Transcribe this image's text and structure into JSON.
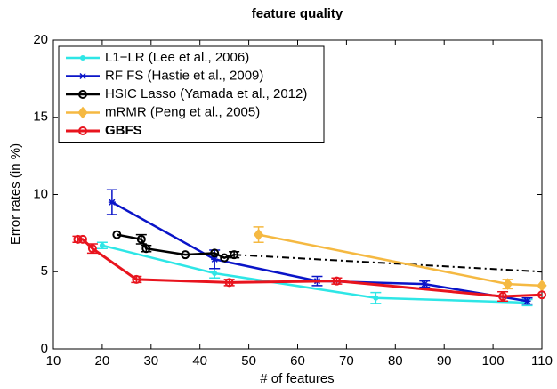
{
  "chart_data": {
    "type": "line",
    "title": "feature quality",
    "x_label": "# of features",
    "y_label": "Error rates (in %)",
    "xlim": [
      10,
      110
    ],
    "ylim": [
      0,
      20
    ],
    "xticks": [
      10,
      20,
      30,
      40,
      50,
      60,
      70,
      80,
      90,
      100,
      110
    ],
    "yticks": [
      0,
      5,
      10,
      15,
      20
    ],
    "legend": "upper-left",
    "series": [
      {
        "name": "L1−LR (Lee et al., 2006)",
        "color": "#2ee6e6",
        "marker": "dot",
        "x": [
          20,
          43,
          76,
          107
        ],
        "values": [
          6.7,
          4.9,
          3.3,
          3.0
        ],
        "errors": [
          0.2,
          0.3,
          0.35,
          0.2
        ]
      },
      {
        "name": "RF FS (Hastie et al., 2009)",
        "color": "#0a14c8",
        "marker": "star",
        "x": [
          22,
          43,
          64,
          86,
          107
        ],
        "values": [
          9.5,
          5.8,
          4.4,
          4.2,
          3.1
        ],
        "errors": [
          0.8,
          0.6,
          0.3,
          0.2,
          0.2
        ]
      },
      {
        "name": "HSIC Lasso (Yamada et al., 2012)",
        "color": "#000000",
        "marker": "circle",
        "x": [
          23,
          28,
          29,
          37,
          43,
          45,
          47
        ],
        "values": [
          7.4,
          7.1,
          6.5,
          6.1,
          6.2,
          5.9,
          6.1
        ],
        "errors": [
          null,
          0.3,
          0.2,
          null,
          null,
          null,
          0.2
        ],
        "dashed_tail": {
          "x": [
            47,
            110
          ],
          "values": [
            6.1,
            5.0
          ]
        }
      },
      {
        "name": "mRMR (Peng et al., 2005)",
        "color": "#f5b942",
        "marker": "diamond",
        "x": [
          52,
          103,
          110
        ],
        "values": [
          7.4,
          4.2,
          4.1
        ],
        "errors": [
          0.5,
          0.3,
          null
        ]
      },
      {
        "name": "GBFS",
        "color": "#e8141e",
        "marker": "circle",
        "bold": true,
        "x": [
          15,
          16,
          18,
          27,
          46,
          68,
          102,
          110
        ],
        "values": [
          7.1,
          7.1,
          6.5,
          4.5,
          4.3,
          4.4,
          3.4,
          3.5
        ],
        "errors": [
          0.2,
          null,
          0.3,
          0.2,
          0.2,
          0.2,
          0.3,
          null
        ]
      }
    ]
  }
}
